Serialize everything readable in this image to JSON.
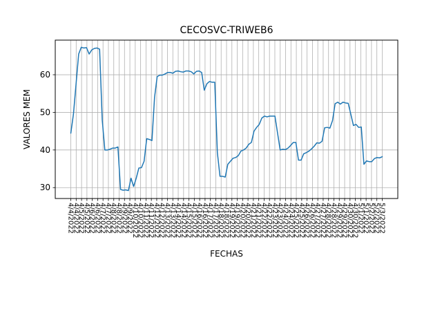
{
  "chart_data": {
    "type": "line",
    "title": "CECOSVC-TRIWEB6",
    "xlabel": "FECHAS",
    "ylabel": "VALORES MEM",
    "ylim": [
      27.1,
      69.2
    ],
    "yticks": [
      30,
      40,
      50,
      60
    ],
    "grid": true,
    "line_color": "#1f77b4",
    "x_tick_labels": [
      "4/4/2022",
      "4/4/2022",
      "4/5/2022",
      "4/5/2022",
      "4/6/2022",
      "4/6/2022",
      "4/7/2022",
      "4/7/2022",
      "4/8/2022",
      "4/8/2022",
      "4/9/2022",
      "4/9/2022",
      "4/10/2022",
      "4/10/2022",
      "4/11/2022",
      "4/11/2022",
      "4/12/2022",
      "4/12/2022",
      "4/13/2022",
      "4/13/2022",
      "4/14/2022",
      "4/14/2022",
      "4/15/2022",
      "4/15/2022",
      "4/16/2022",
      "4/16/2022",
      "4/17/2022",
      "4/17/2022",
      "4/18/2022",
      "4/18/2022",
      "4/19/2022",
      "4/19/2022",
      "4/20/2022",
      "4/20/2022",
      "4/21/2022",
      "4/21/2022",
      "4/22/2022",
      "4/22/2022",
      "4/23/2022",
      "4/23/2022",
      "4/24/2022",
      "4/24/2022",
      "4/25/2022",
      "4/25/2022",
      "4/26/2022",
      "4/26/2022",
      "4/27/2022",
      "4/27/2022",
      "4/28/2022",
      "4/28/2022",
      "4/29/2022",
      "4/29/2022",
      "4/30/2022",
      "4/30/2022",
      "5/1/2022",
      "5/1/2022",
      "5/2/2022",
      "5/2/2022",
      "5/3/2022"
    ],
    "series": [
      {
        "name": "CECOSVC-TRIWEB6",
        "values": [
          44.5,
          49.5,
          57.5,
          65.5,
          67.3,
          67.1,
          67.2,
          65.5,
          66.6,
          67.0,
          67.1,
          66.8,
          48.0,
          40.0,
          40.0,
          40.2,
          40.5,
          40.5,
          40.8,
          29.5,
          29.3,
          29.4,
          29.2,
          32.5,
          30.3,
          32.5,
          35.2,
          35.3,
          37.0,
          43.0,
          42.8,
          42.5,
          54.0,
          59.5,
          59.9,
          59.9,
          60.2,
          60.6,
          60.6,
          60.4,
          60.9,
          61.0,
          60.8,
          60.7,
          61.0,
          61.0,
          60.8,
          60.2,
          60.9,
          61.0,
          60.6,
          55.9,
          57.6,
          58.2,
          58.0,
          58.0,
          39.3,
          33.0,
          33.0,
          32.8,
          36.2,
          37.0,
          37.8,
          38.0,
          38.5,
          39.7,
          40.0,
          40.5,
          41.5,
          42.0,
          45.0,
          46.0,
          46.8,
          48.5,
          49.0,
          48.8,
          49.0,
          49.0,
          49.0,
          44.5,
          40.0,
          40.2,
          40.1,
          40.5,
          41.2,
          42.0,
          42.0,
          37.3,
          37.3,
          39.0,
          39.3,
          39.7,
          40.3,
          41.0,
          41.9,
          41.8,
          42.3,
          45.9,
          46.0,
          45.8,
          47.8,
          52.3,
          52.7,
          52.2,
          52.7,
          52.5,
          52.4,
          49.5,
          46.5,
          46.8,
          46.0,
          46.1,
          36.2,
          37.1,
          36.9,
          36.9,
          37.7,
          38.0,
          37.9,
          38.2
        ]
      }
    ]
  }
}
